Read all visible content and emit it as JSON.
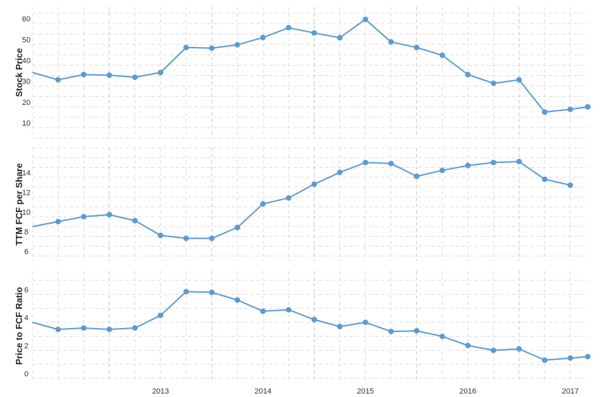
{
  "chart_data": [
    {
      "type": "line",
      "ylabel": "Stock Price",
      "ylim": [
        5,
        68
      ],
      "yticks": [
        10,
        20,
        30,
        40,
        50,
        60
      ],
      "x": [
        2012.25,
        2012.5,
        2012.75,
        2013.0,
        2013.25,
        2013.5,
        2013.75,
        2014.0,
        2014.25,
        2014.5,
        2014.75,
        2015.0,
        2015.25,
        2015.5,
        2015.75,
        2016.0,
        2016.25,
        2016.5,
        2016.75,
        2017.0,
        2017.25,
        2017.5,
        2017.67
      ],
      "values": [
        36.5,
        33.0,
        35.5,
        35.2,
        34.2,
        36.5,
        48.5,
        48.2,
        49.8,
        53.3,
        58.0,
        55.5,
        53.2,
        62.0,
        51.2,
        48.5,
        44.8,
        35.5,
        31.3,
        33.0,
        17.5,
        18.8,
        20.0
      ],
      "markers_from_index": 1
    },
    {
      "type": "line",
      "ylabel": "TTM FCF per Share",
      "ylim": [
        5.5,
        17
      ],
      "yticks": [
        6,
        8,
        10,
        12,
        14
      ],
      "x": [
        2012.25,
        2012.5,
        2012.75,
        2013.0,
        2013.25,
        2013.5,
        2013.75,
        2014.0,
        2014.25,
        2014.5,
        2014.75,
        2015.0,
        2015.25,
        2015.5,
        2015.75,
        2016.0,
        2016.25,
        2016.5,
        2016.75,
        2017.0,
        2017.25,
        2017.5
      ],
      "values": [
        9.0,
        9.5,
        10.0,
        10.2,
        9.6,
        8.1,
        7.8,
        7.8,
        8.9,
        11.3,
        11.9,
        13.3,
        14.5,
        15.5,
        15.4,
        14.1,
        14.7,
        15.2,
        15.5,
        15.6,
        13.8,
        13.2
      ],
      "markers_from_index": 1
    },
    {
      "type": "line",
      "ylabel": "Price to FCF Ratio",
      "ylim": [
        -0.2,
        7.7
      ],
      "yticks": [
        0,
        2,
        4,
        6
      ],
      "x": [
        2012.25,
        2012.5,
        2012.75,
        2013.0,
        2013.25,
        2013.5,
        2013.75,
        2014.0,
        2014.25,
        2014.5,
        2014.75,
        2015.0,
        2015.25,
        2015.5,
        2015.75,
        2016.0,
        2016.25,
        2016.5,
        2016.75,
        2017.0,
        2017.25,
        2017.5,
        2017.67
      ],
      "values": [
        4.0,
        3.5,
        3.6,
        3.5,
        3.6,
        4.5,
        6.2,
        6.15,
        5.6,
        4.8,
        4.9,
        4.2,
        3.7,
        4.0,
        3.35,
        3.4,
        3.0,
        2.35,
        2.0,
        2.1,
        1.3,
        1.45,
        1.55
      ],
      "markers_from_index": 1
    }
  ],
  "x_axis": {
    "range": [
      2012.25,
      2017.67
    ],
    "tick_labels": [
      "2013",
      "2014",
      "2015",
      "2016",
      "2017"
    ],
    "tick_positions": [
      2013.0,
      2014.0,
      2015.0,
      2016.0,
      2017.0
    ],
    "label_positions": [
      2013.5,
      2014.5,
      2015.5,
      2016.5,
      2017.5
    ]
  },
  "colors": {
    "series": "#5b9bd5",
    "grid": "#dcdcdc"
  }
}
